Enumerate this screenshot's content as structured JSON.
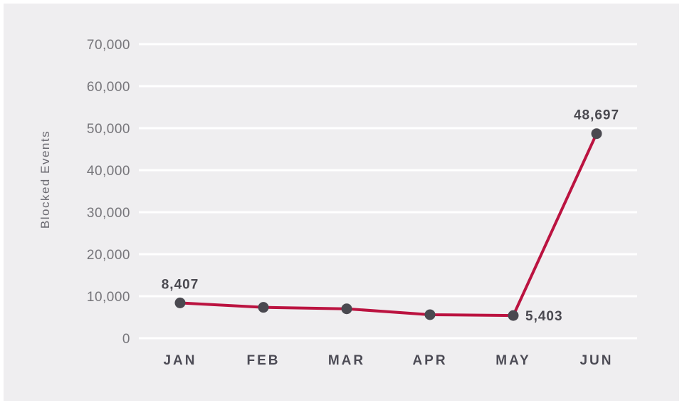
{
  "chart_data": {
    "type": "line",
    "title": "",
    "xlabel": "",
    "ylabel": "Blocked Events",
    "ylim": [
      0,
      70000
    ],
    "grid": true,
    "legend": false,
    "yticks": [
      {
        "value": 0,
        "label": "0"
      },
      {
        "value": 10000,
        "label": "10,000"
      },
      {
        "value": 20000,
        "label": "20,000"
      },
      {
        "value": 30000,
        "label": "30,000"
      },
      {
        "value": 40000,
        "label": "40,000"
      },
      {
        "value": 50000,
        "label": "50,000"
      },
      {
        "value": 60000,
        "label": "60,000"
      },
      {
        "value": 70000,
        "label": "70,000"
      }
    ],
    "categories": [
      "JAN",
      "FEB",
      "MAR",
      "APR",
      "MAY",
      "JUN"
    ],
    "series": [
      {
        "name": "Blocked Events",
        "points": [
          {
            "x": "JAN",
            "y": 8407,
            "label": "8,407",
            "label_pos": "above"
          },
          {
            "x": "FEB",
            "y": 7350
          },
          {
            "x": "MAR",
            "y": 7000
          },
          {
            "x": "APR",
            "y": 5600
          },
          {
            "x": "MAY",
            "y": 5403,
            "label": "5,403",
            "label_pos": "right"
          },
          {
            "x": "JUN",
            "y": 48697,
            "label": "48,697",
            "label_pos": "above"
          }
        ]
      }
    ]
  },
  "appearance": {
    "page_bg": "#ffffff",
    "canvas_bg": "#efeef0",
    "grid_color": "#ffffff",
    "line_color": "#bb1340",
    "point_color": "#4a4950",
    "tick_label_color": "#76757a",
    "month_label_color": "#4c4b55",
    "value_label_color": "#4a4950",
    "axis_title_color": "#6b6a71"
  }
}
